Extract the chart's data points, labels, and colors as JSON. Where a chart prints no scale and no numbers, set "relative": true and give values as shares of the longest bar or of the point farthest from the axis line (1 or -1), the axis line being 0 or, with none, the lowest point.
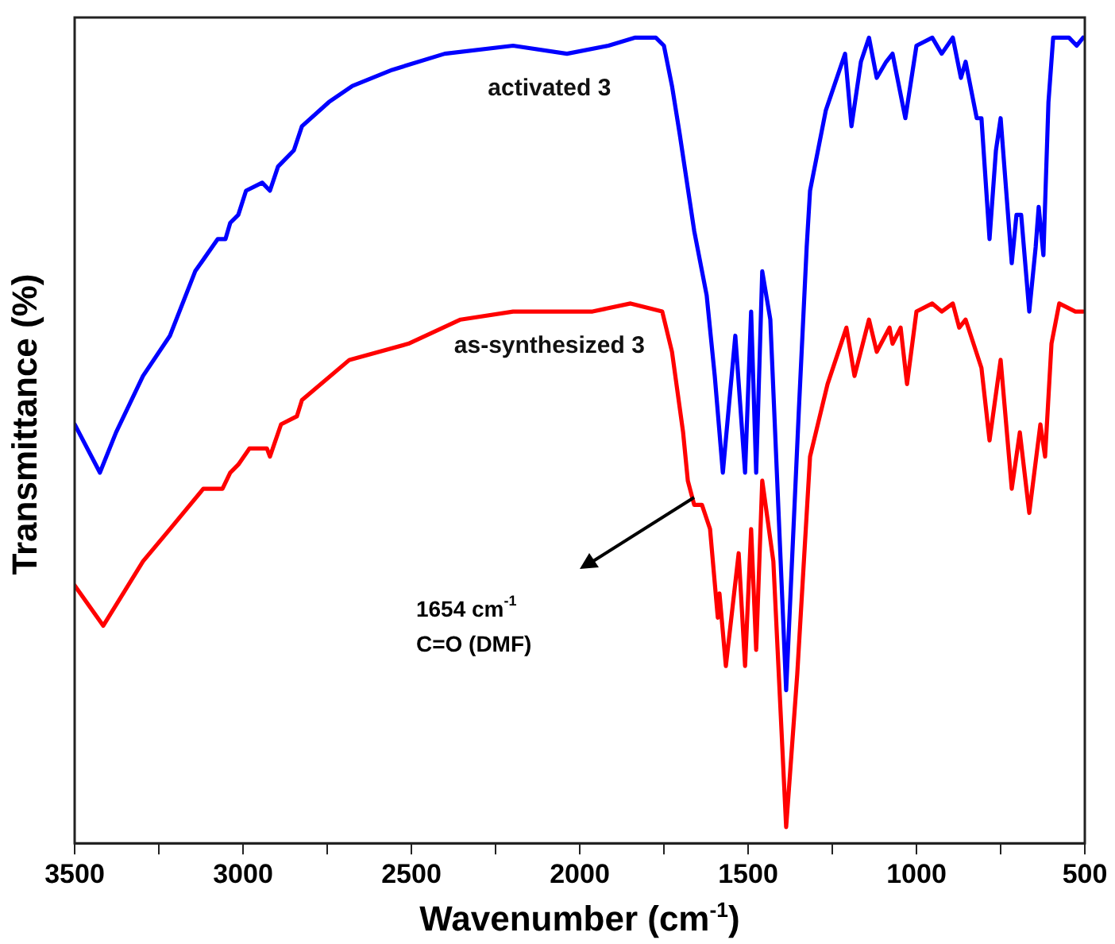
{
  "chart_data": {
    "type": "line",
    "relative": true,
    "xlabel": "Wavenumber (cm$^{-1}$)",
    "ylabel": "Transmittance (%)",
    "marker": "none",
    "line_style": "solid",
    "xlim": [
      3500,
      500
    ],
    "xticks": [
      3500,
      {
        "value": 3250,
        "label": null
      },
      3000,
      {
        "value": 2750,
        "label": null
      },
      2500,
      {
        "value": 2250,
        "label": null
      },
      2000,
      {
        "value": 1750,
        "label": null
      },
      1500,
      {
        "value": 1250,
        "label": null
      },
      1000,
      {
        "value": 750,
        "label": null
      },
      500
    ],
    "series": [
      {
        "name": "activated 3",
        "color": "#0000ff",
        "x": [
          3500,
          3425,
          3377,
          3297,
          3217,
          3142,
          3075,
          3052,
          3038,
          3014,
          2991,
          2943,
          2920,
          2896,
          2849,
          2825,
          2745,
          2675,
          2557,
          2401,
          2198,
          2038,
          1915,
          1835,
          1774,
          1750,
          1726,
          1703,
          1660,
          1623,
          1599,
          1575,
          1538,
          1509,
          1491,
          1476,
          1458,
          1434,
          1387,
          1349,
          1326,
          1316,
          1269,
          1212,
          1193,
          1165,
          1141,
          1118,
          1090,
          1071,
          1033,
          1000,
          953,
          925,
          892,
          868,
          854,
          821,
          807,
          783,
          764,
          750,
          717,
          703,
          689,
          665,
          646,
          637,
          623,
          608,
          594,
          547,
          524,
          505
        ],
        "values": [
          0.52,
          0.46,
          0.51,
          0.58,
          0.63,
          0.71,
          0.75,
          0.75,
          0.77,
          0.78,
          0.81,
          0.82,
          0.81,
          0.84,
          0.86,
          0.89,
          0.92,
          0.94,
          0.96,
          0.98,
          0.99,
          0.98,
          0.99,
          1,
          1,
          0.99,
          0.94,
          0.88,
          0.76,
          0.68,
          0.58,
          0.46,
          0.63,
          0.46,
          0.66,
          0.46,
          0.71,
          0.65,
          0.19,
          0.54,
          0.74,
          0.81,
          0.91,
          0.98,
          0.89,
          0.97,
          1,
          0.95,
          0.97,
          0.98,
          0.9,
          0.99,
          1,
          0.98,
          1,
          0.95,
          0.97,
          0.9,
          0.9,
          0.75,
          0.86,
          0.9,
          0.72,
          0.78,
          0.78,
          0.66,
          0.74,
          0.79,
          0.73,
          0.92,
          1,
          1,
          0.99,
          1
        ]
      },
      {
        "name": "as-synthesized 3",
        "color": "#ff0000",
        "x": [
          3500,
          3415,
          3297,
          3217,
          3118,
          3061,
          3038,
          3014,
          2981,
          2929,
          2920,
          2887,
          2840,
          2825,
          2684,
          2509,
          2354,
          2198,
          1962,
          1849,
          1755,
          1726,
          1693,
          1679,
          1660,
          1637,
          1613,
          1590,
          1585,
          1566,
          1528,
          1509,
          1491,
          1476,
          1458,
          1425,
          1387,
          1354,
          1316,
          1264,
          1208,
          1184,
          1141,
          1118,
          1080,
          1071,
          1047,
          1028,
          1000,
          953,
          925,
          892,
          873,
          854,
          807,
          783,
          750,
          717,
          693,
          665,
          632,
          618,
          599,
          576,
          528,
          505
        ],
        "values": [
          0.32,
          0.27,
          0.35,
          0.39,
          0.44,
          0.44,
          0.46,
          0.47,
          0.49,
          0.49,
          0.48,
          0.52,
          0.53,
          0.55,
          0.6,
          0.62,
          0.65,
          0.66,
          0.66,
          0.67,
          0.66,
          0.61,
          0.51,
          0.45,
          0.42,
          0.42,
          0.39,
          0.28,
          0.31,
          0.22,
          0.36,
          0.22,
          0.39,
          0.24,
          0.45,
          0.35,
          0.02,
          0.21,
          0.48,
          0.57,
          0.64,
          0.58,
          0.65,
          0.61,
          0.64,
          0.62,
          0.64,
          0.57,
          0.66,
          0.67,
          0.66,
          0.67,
          0.64,
          0.65,
          0.59,
          0.5,
          0.6,
          0.44,
          0.51,
          0.41,
          0.52,
          0.48,
          0.62,
          0.67,
          0.66,
          0.66
        ]
      }
    ],
    "annotations": [
      "1654 cm$^{-1}$",
      "C=O (DMF)"
    ]
  }
}
